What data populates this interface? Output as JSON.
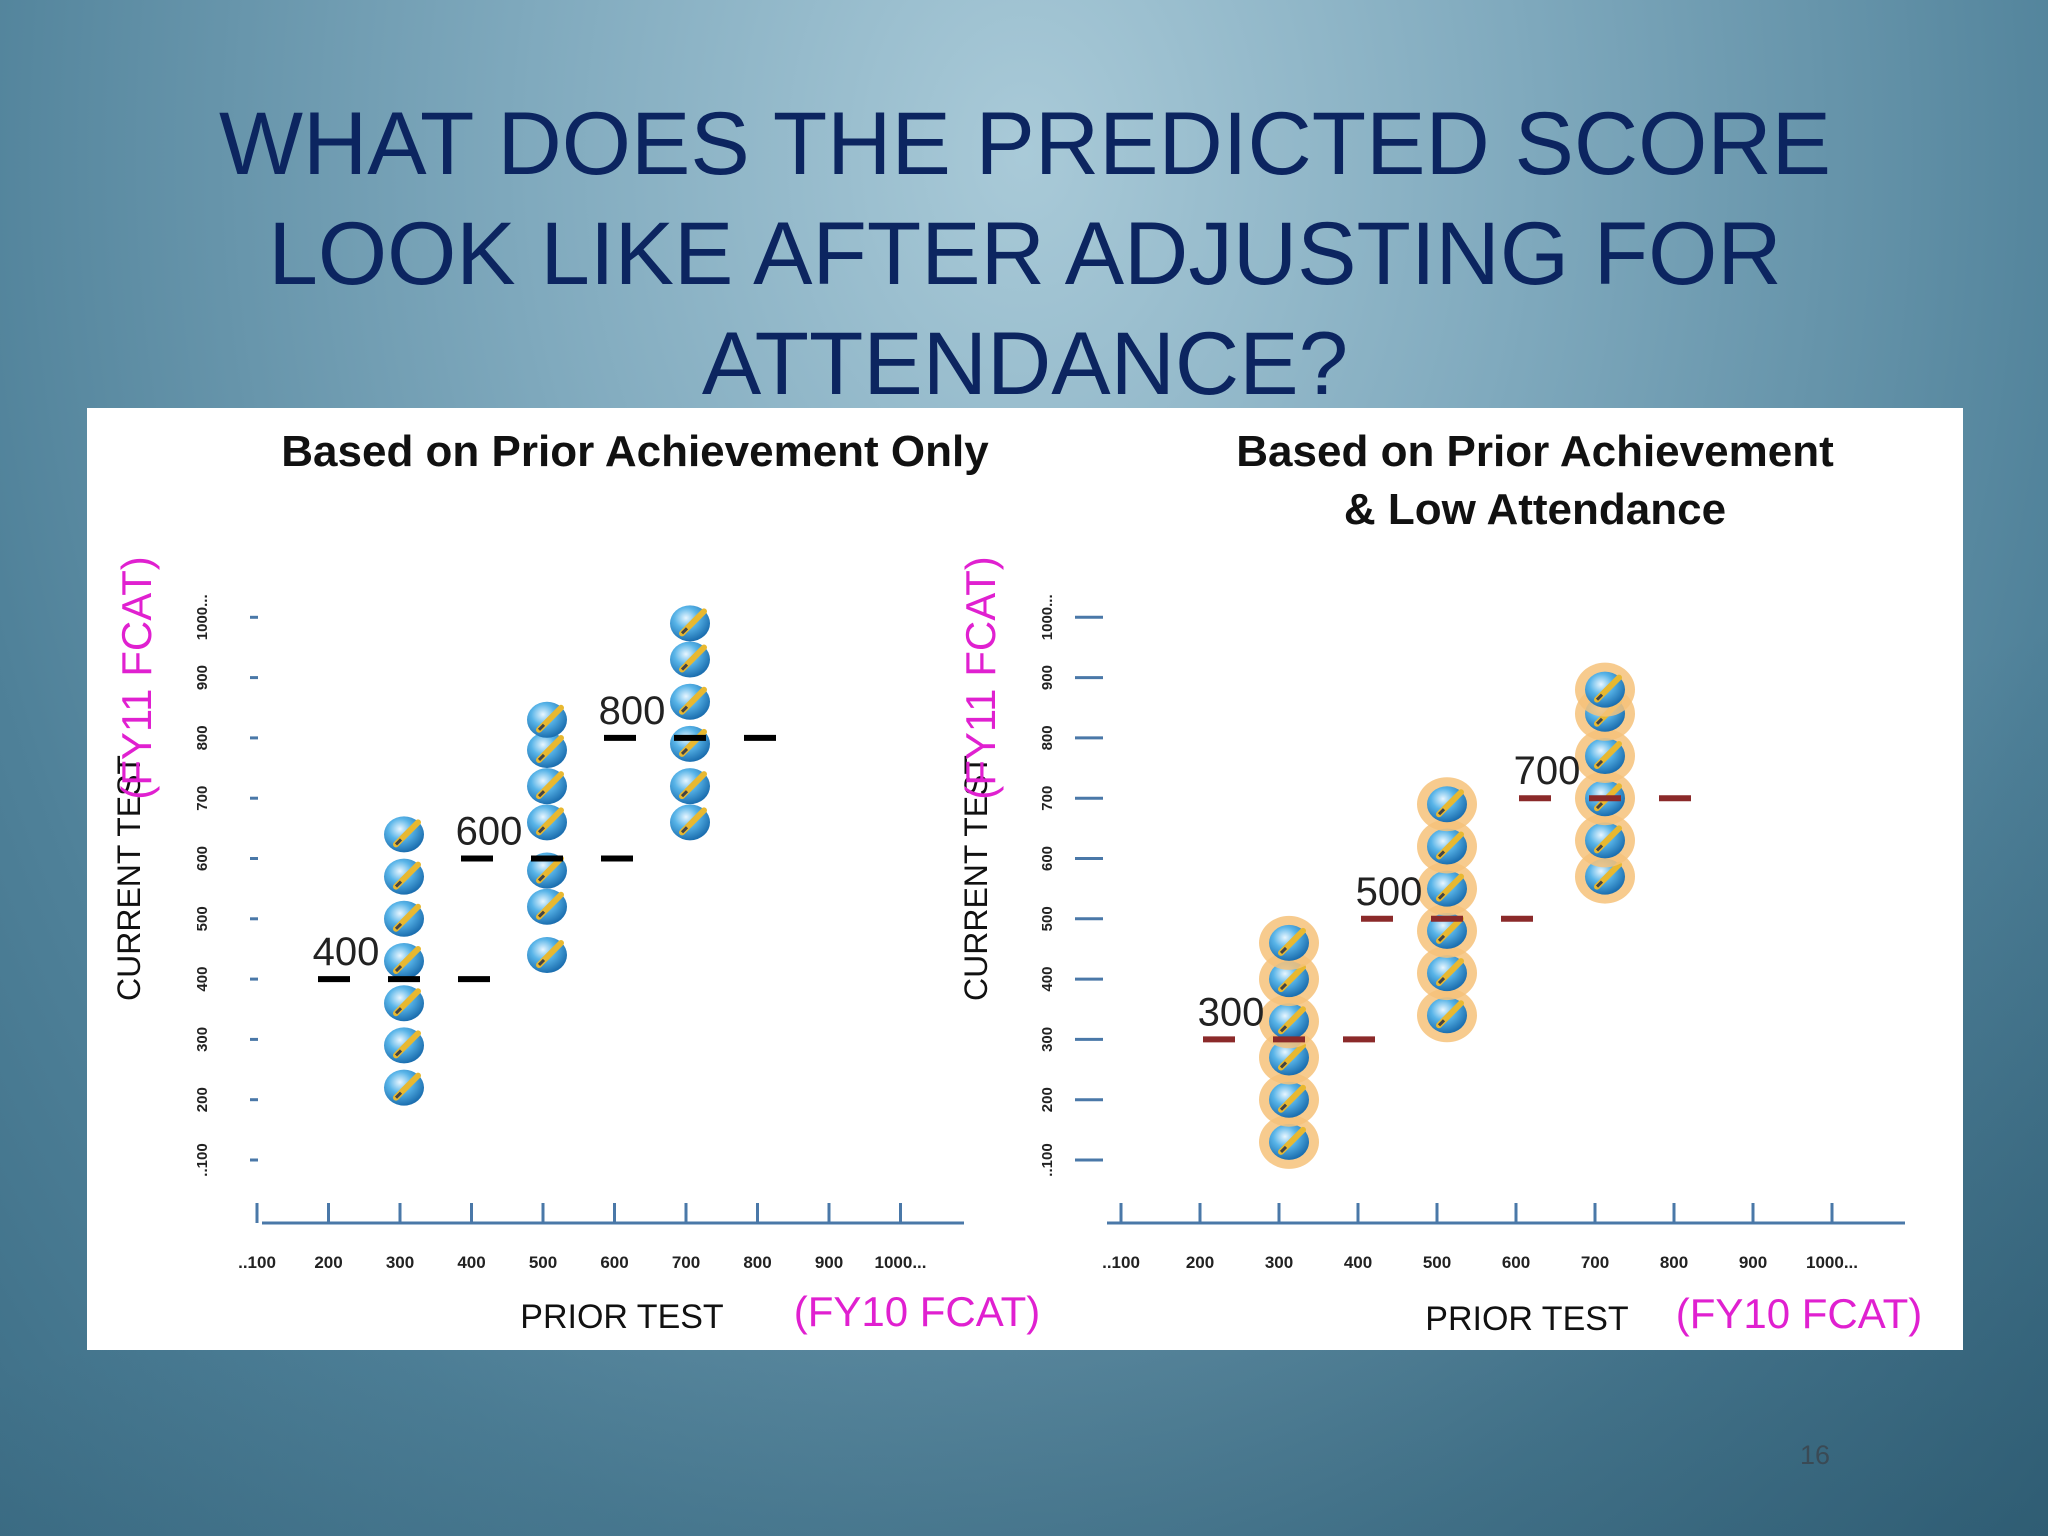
{
  "slide": {
    "title_lines": [
      "WHAT DOES THE PREDICTED SCORE",
      "LOOK LIKE AFTER ADJUSTING FOR",
      "ATTENDANCE?"
    ],
    "page_number": "16"
  },
  "colors": {
    "title": "#0c2560",
    "axis_label_accent": "#e020d0",
    "axis_line": "#4a78a8",
    "predicted_left": "#000000",
    "predicted_right": "#8b2a2a"
  },
  "icons": {
    "student_marker": "student-pencil-icon"
  },
  "chart_data": [
    {
      "type": "scatter",
      "title": "Based on Prior Achievement Only",
      "xlabel": "PRIOR TEST",
      "xlabel_accent": "(FY10 FCAT)",
      "ylabel": "CURRENT TEST",
      "ylabel_accent": "(FY11 FCAT)",
      "xticks": [
        "..100",
        "200",
        "300",
        "400",
        "500",
        "600",
        "700",
        "800",
        "900",
        "1000..."
      ],
      "yticks": [
        "..100",
        "200",
        "300",
        "400",
        "500",
        "600",
        "700",
        "800",
        "900",
        "1000..."
      ],
      "xlim": [
        0,
        1000
      ],
      "ylim": [
        0,
        1000
      ],
      "groups": [
        {
          "prior": 300,
          "predicted": 400,
          "predicted_label": "400",
          "students": [
            220,
            290,
            360,
            430,
            500,
            570,
            640
          ]
        },
        {
          "prior": 500,
          "predicted": 600,
          "predicted_label": "600",
          "students": [
            440,
            520,
            580,
            660,
            720,
            780,
            830
          ]
        },
        {
          "prior": 700,
          "predicted": 800,
          "predicted_label": "800",
          "students": [
            660,
            720,
            790,
            860,
            930,
            990
          ]
        }
      ]
    },
    {
      "type": "scatter",
      "title": "Based on Prior Achievement",
      "title_line2": "& Low Attendance",
      "xlabel": "PRIOR TEST",
      "xlabel_accent": "(FY10 FCAT)",
      "ylabel": "CURRENT TEST",
      "ylabel_accent": "(FY11 FCAT)",
      "xticks": [
        "..100",
        "200",
        "300",
        "400",
        "500",
        "600",
        "700",
        "800",
        "900",
        "1000..."
      ],
      "yticks": [
        "..100",
        "200",
        "300",
        "400",
        "500",
        "600",
        "700",
        "800",
        "900",
        "1000..."
      ],
      "xlim": [
        0,
        1000
      ],
      "ylim": [
        0,
        1000
      ],
      "groups": [
        {
          "prior": 300,
          "predicted": 300,
          "predicted_label": "300",
          "students": [
            130,
            200,
            270,
            330,
            400,
            460
          ]
        },
        {
          "prior": 500,
          "predicted": 500,
          "predicted_label": "500",
          "students": [
            340,
            410,
            480,
            550,
            620,
            690
          ]
        },
        {
          "prior": 700,
          "predicted": 700,
          "predicted_label": "700",
          "students": [
            570,
            630,
            700,
            770,
            840,
            880
          ]
        }
      ]
    }
  ]
}
